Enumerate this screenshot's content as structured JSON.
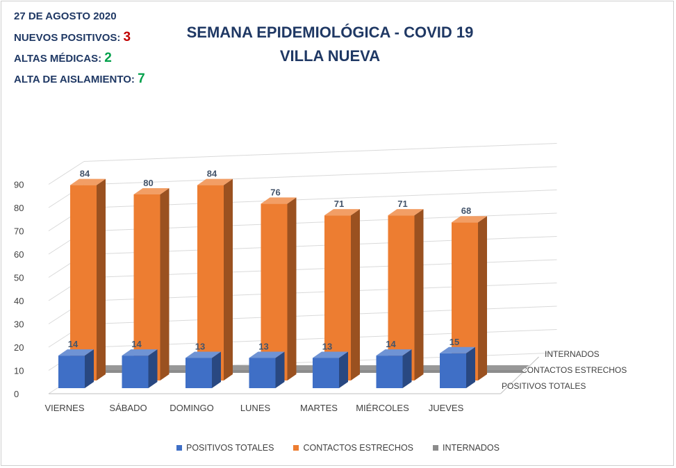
{
  "info": {
    "date": "27 DE AGOSTO 2020",
    "nuevos_label": "NUEVOS POSITIVOS:",
    "nuevos_value": "3",
    "altas_label": "ALTAS MÉDICAS:",
    "altas_value": "2",
    "aislamiento_label": "ALTA DE AISLAMIENTO:",
    "aislamiento_value": "7"
  },
  "colors": {
    "positivos": "#3f6fc6",
    "contactos": "#ed7d31",
    "internados": "#8c8c8c",
    "label_text": "#44546a",
    "axis_text": "#404040"
  },
  "chart_data": {
    "type": "bar",
    "title": "SEMANA EPIDEMIOLÓGICA - COVID 19",
    "subtitle": "VILLA NUEVA",
    "categories": [
      "VIERNES",
      "SÁBADO",
      "DOMINGO",
      "LUNES",
      "MARTES",
      "MIÉRCOLES",
      "JUEVES"
    ],
    "series": [
      {
        "name": "POSITIVOS TOTALES",
        "values": [
          14,
          14,
          13,
          13,
          13,
          14,
          15
        ]
      },
      {
        "name": "CONTACTOS ESTRECHOS",
        "values": [
          84,
          80,
          84,
          76,
          71,
          71,
          68
        ]
      },
      {
        "name": "INTERNADOS",
        "values": [
          1,
          1,
          1,
          2,
          2,
          2,
          1
        ]
      }
    ],
    "ylim": [
      0,
      90
    ],
    "yticks": [
      0,
      10,
      20,
      30,
      40,
      50,
      60,
      70,
      80,
      90
    ],
    "depth_labels": [
      "POSITIVOS TOTALES",
      "CONTACTOS ESTRECHOS",
      "INTERNADOS"
    ],
    "grid": true,
    "legend": "bottom",
    "style": "3d-column"
  }
}
